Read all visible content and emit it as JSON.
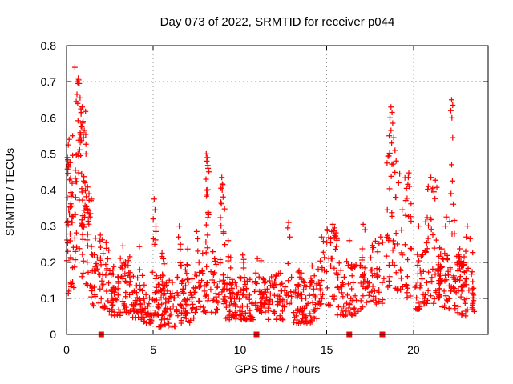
{
  "window": {
    "background": "#ffffff"
  },
  "chart_data": {
    "type": "scatter",
    "title": "Day 073 of 2022, SRMTID for receiver p044",
    "xlabel": "GPS time / hours",
    "ylabel": "SRMTID / TECUs",
    "series_name": "SRMTID",
    "xlim": [
      0,
      24.3
    ],
    "ylim": [
      0,
      0.8
    ],
    "xticks": [
      0,
      5,
      10,
      15,
      20
    ],
    "yticks": [
      0,
      0.1,
      0.2,
      0.3,
      0.4,
      0.5,
      0.6,
      0.7,
      0.8
    ],
    "grid": true,
    "grid_style": "dotted",
    "legend_position": "none",
    "marker": "plus",
    "marker_color": "#ff0000",
    "grid_color": "#999999",
    "axis_color": "#000000",
    "seed": 73,
    "baseline_square_x": [
      2.0,
      10.95,
      16.3,
      18.2
    ],
    "highlight_points": [
      [
        0.48,
        0.74
      ],
      [
        0.62,
        0.7
      ],
      [
        0.66,
        0.695
      ],
      [
        0.7,
        0.705
      ],
      [
        0.73,
        0.695
      ],
      [
        0.68,
        0.71
      ],
      [
        0.6,
        0.665
      ],
      [
        0.78,
        0.655
      ],
      [
        0.56,
        0.645
      ],
      [
        0.9,
        0.63
      ],
      [
        0.84,
        0.615
      ],
      [
        0.95,
        0.59
      ],
      [
        0.88,
        0.575
      ],
      [
        1.02,
        0.565
      ],
      [
        0.98,
        0.545
      ],
      [
        0.35,
        0.55
      ],
      [
        0.15,
        0.54
      ],
      [
        0.1,
        0.525
      ],
      [
        1.12,
        0.5
      ],
      [
        0.05,
        0.49
      ],
      [
        1.95,
        0.275
      ],
      [
        2.05,
        0.262
      ],
      [
        3.25,
        0.245
      ],
      [
        4.2,
        0.243
      ],
      [
        5.05,
        0.375
      ],
      [
        5.1,
        0.345
      ],
      [
        5.0,
        0.32
      ],
      [
        5.15,
        0.3
      ],
      [
        5.5,
        0.225
      ],
      [
        6.5,
        0.3
      ],
      [
        6.45,
        0.27
      ],
      [
        6.57,
        0.25
      ],
      [
        7.5,
        0.285
      ],
      [
        7.56,
        0.265
      ],
      [
        8.05,
        0.5
      ],
      [
        8.12,
        0.49
      ],
      [
        8.08,
        0.48
      ],
      [
        8.16,
        0.46
      ],
      [
        8.04,
        0.43
      ],
      [
        8.95,
        0.435
      ],
      [
        9.0,
        0.415
      ],
      [
        8.9,
        0.405
      ],
      [
        8.97,
        0.4
      ],
      [
        9.32,
        0.26
      ],
      [
        10.15,
        0.22
      ],
      [
        11.0,
        0.21
      ],
      [
        12.8,
        0.31
      ],
      [
        12.74,
        0.295
      ],
      [
        12.87,
        0.27
      ],
      [
        14.7,
        0.27
      ],
      [
        14.8,
        0.258
      ],
      [
        15.35,
        0.305
      ],
      [
        15.45,
        0.295
      ],
      [
        15.28,
        0.285
      ],
      [
        16.3,
        0.26
      ],
      [
        17.1,
        0.305
      ],
      [
        17.2,
        0.29
      ],
      [
        18.1,
        0.27
      ],
      [
        18.22,
        0.255
      ],
      [
        18.7,
        0.63
      ],
      [
        18.76,
        0.615
      ],
      [
        18.64,
        0.6
      ],
      [
        18.8,
        0.585
      ],
      [
        18.7,
        0.565
      ],
      [
        18.6,
        0.55
      ],
      [
        18.86,
        0.545
      ],
      [
        18.74,
        0.53
      ],
      [
        19.2,
        0.445
      ],
      [
        19.14,
        0.42
      ],
      [
        19.7,
        0.435
      ],
      [
        19.76,
        0.41
      ],
      [
        20.3,
        0.3
      ],
      [
        21.0,
        0.435
      ],
      [
        21.06,
        0.4
      ],
      [
        21.9,
        0.325
      ],
      [
        21.84,
        0.3
      ],
      [
        22.2,
        0.65
      ],
      [
        22.26,
        0.635
      ],
      [
        22.15,
        0.62
      ],
      [
        22.21,
        0.6
      ],
      [
        22.26,
        0.545
      ],
      [
        22.2,
        0.47
      ],
      [
        22.24,
        0.425
      ],
      [
        22.16,
        0.39
      ],
      [
        23.1,
        0.3
      ],
      [
        23.04,
        0.27
      ],
      [
        23.25,
        0.265
      ]
    ],
    "clusters": [
      [
        0.02,
        0.35,
        0.2,
        0.5,
        28,
        1.0
      ],
      [
        0.05,
        0.22,
        0.42,
        0.5,
        8,
        1.0
      ],
      [
        0.0,
        0.5,
        0.1,
        0.22,
        12,
        1.0
      ],
      [
        0.35,
        0.75,
        0.2,
        0.55,
        20,
        1.1
      ],
      [
        0.55,
        0.9,
        0.52,
        0.67,
        9,
        1.0
      ],
      [
        0.7,
        1.15,
        0.28,
        0.62,
        24,
        1.2
      ],
      [
        0.85,
        1.3,
        0.16,
        0.45,
        22,
        1.2
      ],
      [
        1.1,
        1.5,
        0.12,
        0.4,
        18,
        1.3
      ],
      [
        1.4,
        1.8,
        0.08,
        0.3,
        18,
        1.4
      ],
      [
        1.8,
        2.45,
        0.07,
        0.26,
        32,
        1.5
      ],
      [
        2.45,
        3.1,
        0.05,
        0.19,
        42,
        1.4
      ],
      [
        3.1,
        3.7,
        0.06,
        0.22,
        38,
        1.4
      ],
      [
        3.7,
        4.45,
        0.04,
        0.18,
        42,
        1.4
      ],
      [
        4.45,
        4.95,
        0.03,
        0.14,
        26,
        1.3
      ],
      [
        4.95,
        5.25,
        0.05,
        0.3,
        18,
        1.7
      ],
      [
        5.25,
        6.35,
        0.02,
        0.15,
        62,
        1.3
      ],
      [
        5.4,
        5.65,
        0.14,
        0.22,
        6,
        1.0
      ],
      [
        6.35,
        6.65,
        0.05,
        0.25,
        14,
        1.5
      ],
      [
        6.6,
        7.4,
        0.03,
        0.16,
        46,
        1.3
      ],
      [
        6.85,
        7.1,
        0.13,
        0.24,
        6,
        1.0
      ],
      [
        7.4,
        7.7,
        0.06,
        0.26,
        13,
        1.5
      ],
      [
        7.7,
        8.45,
        0.06,
        0.26,
        28,
        1.5
      ],
      [
        8.0,
        8.22,
        0.27,
        0.47,
        13,
        1.0
      ],
      [
        8.45,
        8.85,
        0.06,
        0.22,
        20,
        1.4
      ],
      [
        8.85,
        9.12,
        0.26,
        0.42,
        9,
        1.0
      ],
      [
        8.85,
        9.15,
        0.08,
        0.26,
        11,
        1.3
      ],
      [
        9.1,
        10.0,
        0.04,
        0.16,
        50,
        1.3
      ],
      [
        9.25,
        9.5,
        0.12,
        0.26,
        7,
        1.2
      ],
      [
        10.0,
        10.9,
        0.04,
        0.16,
        46,
        1.3
      ],
      [
        10.05,
        10.35,
        0.12,
        0.22,
        6,
        1.0
      ],
      [
        10.9,
        11.6,
        0.06,
        0.21,
        36,
        1.4
      ],
      [
        11.6,
        12.6,
        0.04,
        0.17,
        52,
        1.3
      ],
      [
        12.65,
        13.0,
        0.08,
        0.26,
        11,
        1.4
      ],
      [
        13.0,
        14.45,
        0.03,
        0.15,
        75,
        1.3
      ],
      [
        13.3,
        13.6,
        0.11,
        0.21,
        7,
        1.1
      ],
      [
        14.0,
        14.3,
        0.11,
        0.19,
        6,
        1.0
      ],
      [
        14.5,
        15.0,
        0.08,
        0.27,
        22,
        1.4
      ],
      [
        15.0,
        15.6,
        0.08,
        0.3,
        26,
        1.5
      ],
      [
        15.25,
        15.55,
        0.26,
        0.3,
        5,
        1.0
      ],
      [
        15.6,
        16.85,
        0.05,
        0.21,
        55,
        1.4
      ],
      [
        16.85,
        17.55,
        0.07,
        0.25,
        30,
        1.3
      ],
      [
        17.55,
        18.35,
        0.08,
        0.27,
        30,
        1.3
      ],
      [
        18.45,
        19.0,
        0.3,
        0.52,
        17,
        1.0
      ],
      [
        18.4,
        19.05,
        0.12,
        0.3,
        20,
        1.2
      ],
      [
        19.05,
        19.4,
        0.12,
        0.4,
        13,
        1.2
      ],
      [
        19.5,
        19.95,
        0.22,
        0.46,
        14,
        1.1
      ],
      [
        19.55,
        19.9,
        0.1,
        0.22,
        8,
        1.0
      ],
      [
        19.95,
        20.6,
        0.07,
        0.24,
        28,
        1.4
      ],
      [
        20.6,
        21.35,
        0.26,
        0.44,
        16,
        1.1
      ],
      [
        20.6,
        21.35,
        0.08,
        0.26,
        26,
        1.3
      ],
      [
        21.35,
        22.05,
        0.07,
        0.25,
        40,
        1.3
      ],
      [
        21.4,
        21.65,
        0.14,
        0.2,
        12,
        1.0
      ],
      [
        22.05,
        22.38,
        0.12,
        0.4,
        15,
        1.3
      ],
      [
        22.35,
        23.5,
        0.05,
        0.24,
        60,
        1.3
      ],
      [
        22.55,
        22.95,
        0.13,
        0.22,
        14,
        1.0
      ]
    ]
  }
}
